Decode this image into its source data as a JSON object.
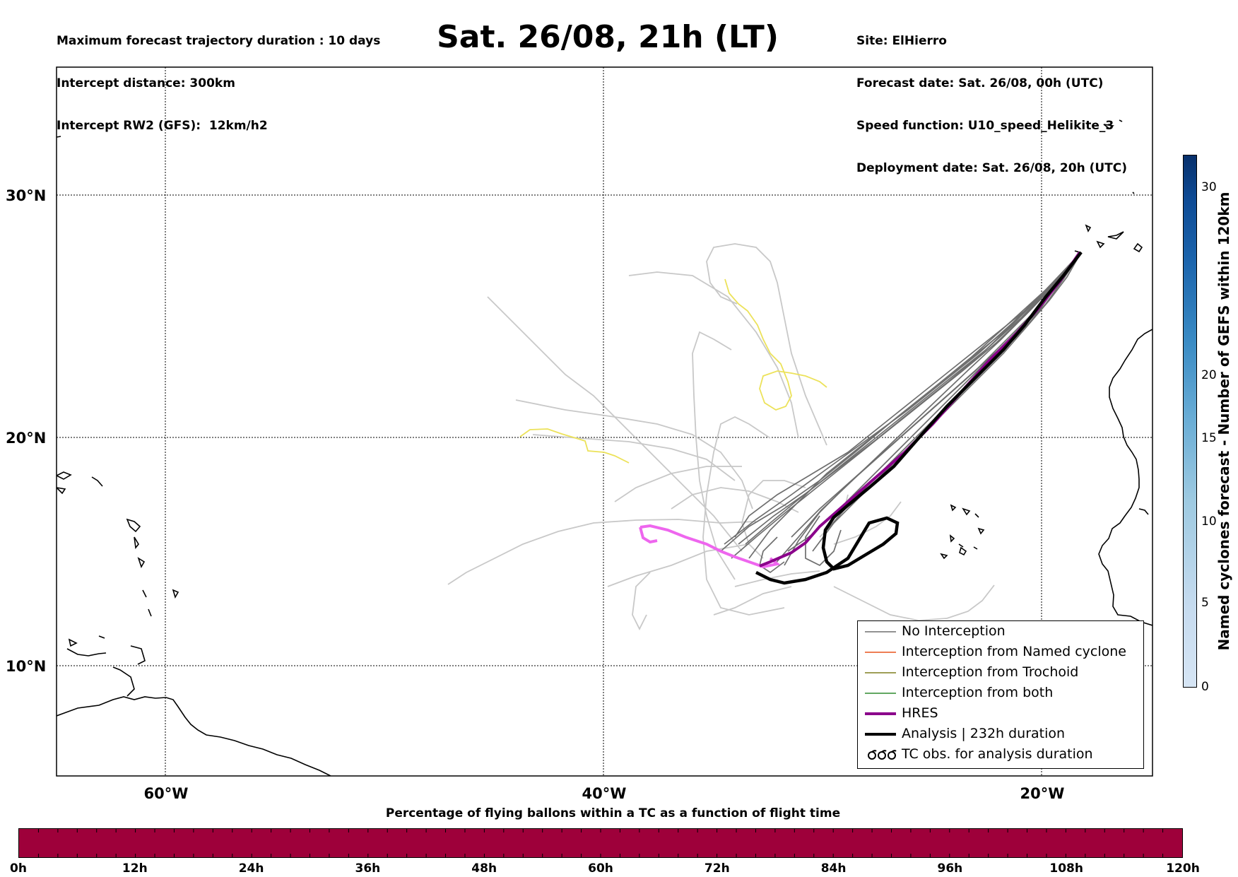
{
  "header": {
    "left_lines": [
      "Maximum forecast trajectory duration : 10 days",
      "Intercept distance: 300km",
      "Intercept RW2 (GFS):  12km/h2"
    ],
    "title": "Sat. 26/08, 21h (LT)",
    "right_lines": [
      "Site: ElHierro",
      "Forecast date: Sat. 26/08, 00h (UTC)",
      "Speed function: U10_speed_Helikite_3",
      "Deployment date: Sat. 26/08, 20h (UTC)"
    ]
  },
  "map": {
    "lon_labels": [
      "60°W",
      "40°W",
      "20°W"
    ],
    "lat_labels": [
      "30°N",
      "20°N",
      "10°N"
    ],
    "colors": {
      "coastline": "#000000",
      "gefs_intercept_traj": "#c8c8c8",
      "gefs_no_intercept": "#6e6e6e",
      "trochoid_yellow": "#ece25a",
      "hres": "#8b008b",
      "hres_forecast_tail": "#ee66ee",
      "analysis": "#000000"
    }
  },
  "legend": {
    "items": [
      {
        "label": "No Interception",
        "color": "#6e6e6e",
        "style": "thin"
      },
      {
        "label": "Interception from Named cyclone",
        "color": "#e8541b",
        "style": "thin"
      },
      {
        "label": "Interception from Trochoid",
        "color": "#7f7f1f",
        "style": "thin"
      },
      {
        "label": "Interception from both",
        "color": "#2f8a2f",
        "style": "thin"
      },
      {
        "label": "HRES",
        "color": "#8b008b",
        "style": "thick"
      },
      {
        "label": "Analysis | 232h duration",
        "color": "#000000",
        "style": "thick"
      },
      {
        "label": "TC obs. for analysis duration",
        "color": "#000000",
        "style": "symbol"
      }
    ]
  },
  "percentage_bar": {
    "title": "Percentage of flying ballons within a TC as a function of flight time",
    "ticks": [
      "0h",
      "12h",
      "24h",
      "36h",
      "48h",
      "60h",
      "72h",
      "84h",
      "96h",
      "108h",
      "120h"
    ],
    "color": "#9e003a"
  },
  "colorbar": {
    "label": "Named cyclones forecast - Number of GEFS within 120km",
    "ticks": [
      "0",
      "5",
      "10",
      "15",
      "20",
      "30"
    ]
  }
}
